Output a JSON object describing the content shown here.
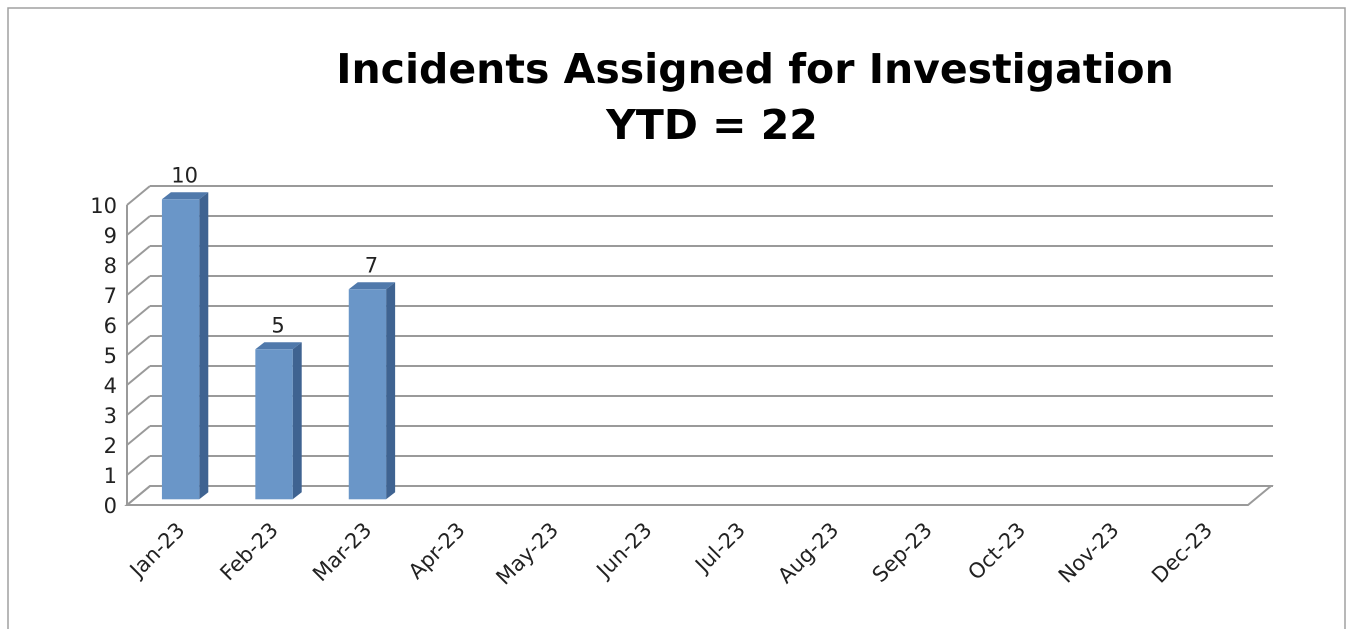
{
  "chart_data": {
    "type": "bar",
    "title": "Incidents Assigned for Investigation",
    "subtitle": "YTD = 22",
    "categories": [
      "Jan-23",
      "Feb-23",
      "Mar-23",
      "Apr-23",
      "May-23",
      "Jun-23",
      "Jul-23",
      "Aug-23",
      "Sep-23",
      "Oct-23",
      "Nov-23",
      "Dec-23"
    ],
    "values": [
      10,
      5,
      7,
      null,
      null,
      null,
      null,
      null,
      null,
      null,
      null,
      null
    ],
    "color": "#6a96c8",
    "ylim": [
      0,
      10
    ],
    "yticks": [
      0,
      1,
      2,
      3,
      4,
      5,
      6,
      7,
      8,
      9,
      10
    ],
    "grid": true
  }
}
